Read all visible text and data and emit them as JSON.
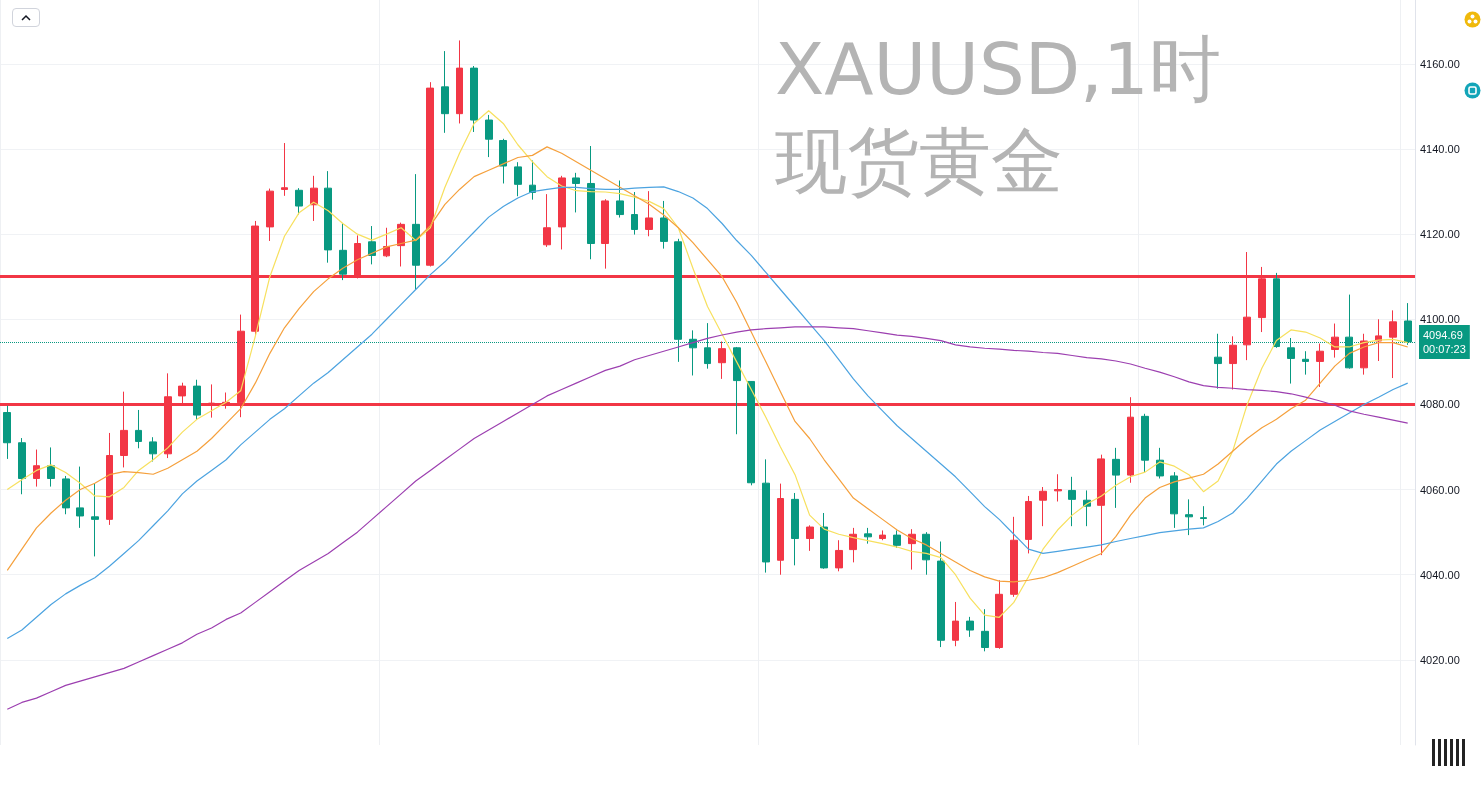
{
  "chart_data": {
    "type": "candlestick",
    "title": "XAUUSD,1时",
    "subtitle": "现货黄金",
    "categories": [
      null,
      null,
      null,
      null,
      null,
      null,
      null,
      null,
      null,
      null,
      null,
      null,
      null,
      null,
      null,
      null,
      null,
      null,
      null,
      null,
      null,
      null,
      null,
      null,
      null,
      null,
      null,
      null,
      null,
      null,
      null,
      null,
      null,
      null,
      null,
      null,
      null,
      null,
      null,
      null,
      null,
      null,
      null,
      null,
      null,
      null,
      null,
      null,
      null,
      null,
      null,
      null,
      null,
      null,
      null,
      null,
      null,
      null,
      null,
      null,
      null,
      null,
      null,
      null,
      null,
      null,
      null,
      null,
      null,
      null,
      null,
      null,
      null,
      null,
      null,
      null,
      null,
      null,
      null,
      null,
      null,
      null,
      null,
      null,
      null,
      null,
      null,
      null,
      null,
      null,
      null,
      null,
      null,
      null,
      null,
      null,
      null
    ],
    "ohlc": [
      [
        4078.1,
        4079.7,
        4067.2,
        4071.0
      ],
      [
        4071.0,
        4072.1,
        4058.9,
        4062.6
      ],
      [
        4062.6,
        4069.4,
        4060.7,
        4065.6
      ],
      [
        4065.6,
        4069.9,
        4060.7,
        4062.6
      ],
      [
        4062.5,
        4063.2,
        4054.2,
        4055.7
      ],
      [
        4055.7,
        4065.4,
        4051.0,
        4053.8
      ],
      [
        4053.6,
        4061.5,
        4044.3,
        4053.0
      ],
      [
        4053.0,
        4073.3,
        4051.7,
        4068.0
      ],
      [
        4068.0,
        4083.0,
        4065.2,
        4073.9
      ],
      [
        4073.9,
        4078.7,
        4069.7,
        4071.3
      ],
      [
        4071.2,
        4072.3,
        4066.6,
        4068.4
      ],
      [
        4068.4,
        4087.3,
        4067.4,
        4081.8
      ],
      [
        4082.0,
        4085.1,
        4079.8,
        4084.3
      ],
      [
        4084.3,
        4085.8,
        4076.4,
        4077.5
      ],
      [
        4080.0,
        4084.7,
        4076.9,
        4080.3
      ],
      [
        4080.2,
        4082.8,
        4079.0,
        4080.5
      ],
      [
        4080.4,
        4101.1,
        4077.0,
        4097.2
      ],
      [
        4097.2,
        4123.1,
        4096.3,
        4121.9
      ],
      [
        4121.7,
        4130.7,
        4118.4,
        4130.1
      ],
      [
        4130.5,
        4141.4,
        4129.0,
        4130.9
      ],
      [
        4130.3,
        4130.8,
        4124.6,
        4126.6
      ],
      [
        4126.9,
        4133.7,
        4123.1,
        4130.8
      ],
      [
        4130.8,
        4134.8,
        4113.3,
        4116.3
      ],
      [
        4116.2,
        4122.6,
        4109.2,
        4110.6
      ],
      [
        4109.9,
        4119.7,
        4109.6,
        4117.8
      ],
      [
        4118.2,
        4121.9,
        4112.9,
        4115.0
      ],
      [
        4114.9,
        4121.5,
        4114.6,
        4117.1
      ],
      [
        4117.3,
        4122.7,
        4112.4,
        4122.3
      ],
      [
        4122.3,
        4134.1,
        4107.0,
        4112.7
      ],
      [
        4112.7,
        4155.7,
        4112.4,
        4154.3
      ],
      [
        4154.6,
        4163.0,
        4143.8,
        4148.3
      ],
      [
        4148.3,
        4165.5,
        4146.0,
        4159.0
      ],
      [
        4159.0,
        4159.5,
        4144.0,
        4146.8
      ],
      [
        4146.8,
        4148.0,
        4138.1,
        4142.3
      ],
      [
        4142.0,
        4142.4,
        4131.9,
        4136.0
      ],
      [
        4135.8,
        4136.9,
        4128.9,
        4131.7
      ],
      [
        4131.5,
        4137.3,
        4128.1,
        4129.8
      ],
      [
        4117.5,
        4129.4,
        4117.0,
        4121.5
      ],
      [
        4121.7,
        4133.7,
        4116.4,
        4133.2
      ],
      [
        4133.2,
        4134.4,
        4125.1,
        4131.9
      ],
      [
        4131.9,
        4140.7,
        4114.1,
        4117.8
      ],
      [
        4117.8,
        4128.2,
        4111.9,
        4127.8
      ],
      [
        4127.8,
        4132.6,
        4123.9,
        4124.6
      ],
      [
        4124.6,
        4129.9,
        4119.9,
        4121.1
      ],
      [
        4121.1,
        4130.1,
        4119.5,
        4123.8
      ],
      [
        4123.8,
        4127.8,
        4116.6,
        4118.3
      ],
      [
        4118.2,
        4118.9,
        4090.0,
        4095.3
      ],
      [
        4095.3,
        4097.4,
        4086.8,
        4093.3
      ],
      [
        4093.3,
        4099.1,
        4088.4,
        4089.6
      ],
      [
        4089.8,
        4094.8,
        4086.0,
        4093.1
      ],
      [
        4093.3,
        4093.5,
        4073.0,
        4085.6
      ],
      [
        4085.4,
        4085.5,
        4061.0,
        4061.6
      ],
      [
        4061.5,
        4067.1,
        4040.5,
        4043.0
      ],
      [
        4043.4,
        4061.4,
        4040.0,
        4057.9
      ],
      [
        4057.7,
        4059.2,
        4042.2,
        4048.5
      ],
      [
        4048.5,
        4051.6,
        4045.6,
        4051.2
      ],
      [
        4051.2,
        4054.5,
        4041.4,
        4041.6
      ],
      [
        4041.6,
        4048.1,
        4040.8,
        4045.7
      ],
      [
        4045.9,
        4051.0,
        4042.9,
        4049.5
      ],
      [
        4049.6,
        4051.0,
        4047.3,
        4048.9
      ],
      [
        4048.5,
        4050.4,
        4048.1,
        4049.3
      ],
      [
        4049.3,
        4050.4,
        4046.3,
        4046.9
      ],
      [
        4047.3,
        4050.7,
        4041.2,
        4049.5
      ],
      [
        4049.5,
        4050.0,
        4040.0,
        4043.5
      ],
      [
        4043.2,
        4047.8,
        4023.0,
        4024.6
      ],
      [
        4024.6,
        4033.6,
        4023.2,
        4029.1
      ],
      [
        4029.1,
        4030.1,
        4025.4,
        4027.0
      ],
      [
        4026.7,
        4031.9,
        4022.0,
        4022.9
      ],
      [
        4022.9,
        4038.7,
        4022.6,
        4035.4
      ],
      [
        4035.4,
        4053.6,
        4034.8,
        4048.1
      ],
      [
        4048.3,
        4058.5,
        4045.0,
        4057.2
      ],
      [
        4057.5,
        4060.6,
        4051.4,
        4059.6
      ],
      [
        4059.7,
        4063.6,
        4057.2,
        4060.0
      ],
      [
        4059.8,
        4063.0,
        4051.4,
        4057.7
      ],
      [
        4057.5,
        4059.8,
        4051.4,
        4056.1
      ],
      [
        4056.3,
        4068.2,
        4044.6,
        4067.2
      ],
      [
        4067.1,
        4069.8,
        4055.7,
        4063.4
      ],
      [
        4063.4,
        4081.7,
        4061.6,
        4077.0
      ],
      [
        4077.2,
        4077.8,
        4064.1,
        4066.9
      ],
      [
        4066.9,
        4069.8,
        4062.6,
        4063.2
      ],
      [
        4063.2,
        4064.1,
        4051.0,
        4054.3
      ],
      [
        4054.1,
        4057.7,
        4049.3,
        4053.6
      ],
      [
        4053.4,
        4056.1,
        4051.6,
        4053.2
      ],
      [
        4091.1,
        4096.6,
        4083.7,
        4089.6
      ],
      [
        4089.6,
        4096.0,
        4083.5,
        4093.9
      ],
      [
        4094.0,
        4115.8,
        4090.4,
        4100.5
      ],
      [
        4100.4,
        4112.3,
        4097.0,
        4109.5
      ],
      [
        4109.5,
        4110.9,
        4093.3,
        4093.6
      ],
      [
        4093.3,
        4095.6,
        4084.9,
        4090.8
      ],
      [
        4090.6,
        4092.5,
        4087.0,
        4090.1
      ],
      [
        4090.1,
        4094.3,
        4084.1,
        4092.5
      ],
      [
        4092.9,
        4099.0,
        4091.0,
        4095.8
      ],
      [
        4095.8,
        4105.8,
        4088.4,
        4088.6
      ],
      [
        4088.6,
        4096.6,
        4087.0,
        4094.9
      ],
      [
        4094.9,
        4100.0,
        4090.2,
        4096.1
      ],
      [
        4095.8,
        4102.1,
        4086.2,
        4099.4
      ],
      [
        4099.6,
        4103.8,
        4094.0,
        4094.69
      ]
    ],
    "colors": [
      "#089981",
      "#089981",
      "#f23645",
      "#089981",
      "#089981",
      "#089981",
      "#089981",
      "#f23645",
      "#f23645",
      "#089981",
      "#089981",
      "#f23645",
      "#f23645",
      "#089981",
      "#f23645",
      "#f23645",
      "#f23645",
      "#f23645",
      "#f23645",
      "#f23645",
      "#089981",
      "#f23645",
      "#089981",
      "#089981",
      "#f23645",
      "#089981",
      "#f23645",
      "#f23645",
      "#089981",
      "#f23645",
      "#089981",
      "#f23645",
      "#089981",
      "#089981",
      "#089981",
      "#089981",
      "#089981",
      "#f23645",
      "#f23645",
      "#089981",
      "#089981",
      "#f23645",
      "#089981",
      "#089981",
      "#f23645",
      "#089981",
      "#089981",
      "#089981",
      "#089981",
      "#f23645",
      "#089981",
      "#089981",
      "#089981",
      "#f23645",
      "#089981",
      "#f23645",
      "#089981",
      "#f23645",
      "#f23645",
      "#089981",
      "#f23645",
      "#089981",
      "#f23645",
      "#089981",
      "#089981",
      "#f23645",
      "#089981",
      "#089981",
      "#f23645",
      "#f23645",
      "#f23645",
      "#f23645",
      "#f23645",
      "#089981",
      "#089981",
      "#f23645",
      "#089981",
      "#f23645",
      "#089981",
      "#089981",
      "#089981",
      "#089981",
      "#089981",
      "#089981",
      "#f23645",
      "#f23645",
      "#f23645",
      "#089981",
      "#089981",
      "#089981",
      "#f23645",
      "#f23645",
      "#089981",
      "#f23645",
      "#f23645",
      "#f23645",
      "#089981"
    ],
    "series": [
      {
        "type": "line",
        "color": "#f7e05e",
        "values": [
          4060,
          4062.3,
          4064.5,
          4065.8,
          4064,
          4061.5,
          4058.5,
          4058.3,
          4060.5,
          4064.5,
          4067,
          4069.8,
          4073.5,
          4076.5,
          4078.5,
          4080.5,
          4083.2,
          4096,
          4110,
          4119.5,
          4125,
          4127.5,
          4125.5,
          4122.5,
          4120,
          4118.6,
          4120,
          4121.5,
          4118.5,
          4121.5,
          4131,
          4139,
          4146,
          4149,
          4146,
          4141,
          4137,
          4133.5,
          4131.3,
          4130.2,
          4130,
          4129.9,
          4129.5,
          4128.7,
          4127.7,
          4126,
          4121.5,
          4112,
          4103,
          4096.5,
          4090,
          4083.5,
          4077,
          4070,
          4063.5,
          4054,
          4050.7,
          4049.5,
          4048.7,
          4048,
          4047.3,
          4046.5,
          4045.5,
          4045,
          4044,
          4040,
          4034.5,
          4030.5,
          4030,
          4033.5,
          4039.5,
          4046,
          4050.5,
          4054,
          4056.6,
          4058.5,
          4061,
          4063,
          4064.1,
          4066.5,
          4065.5,
          4063.5,
          4059.5,
          4062,
          4069,
          4080,
          4088.5,
          4095,
          4097.5,
          4097,
          4095.6,
          4093.5,
          4093.5,
          4094.5,
          4095.1,
          4095.3,
          4094.5
        ]
      },
      {
        "type": "line",
        "color": "#f5a03c",
        "values": [
          4041,
          4046,
          4051,
          4054.5,
          4057.5,
          4060,
          4061.5,
          4063.5,
          4064.2,
          4064,
          4063.6,
          4065,
          4067,
          4069,
          4072,
          4075.5,
          4079,
          4085,
          4092,
          4098,
          4102.5,
          4106.5,
          4109.5,
          4112,
          4114,
          4115.5,
          4117,
          4117.8,
          4118.6,
          4122,
          4127,
          4130.5,
          4133.5,
          4135,
          4136.5,
          4138,
          4138.5,
          4140.5,
          4139,
          4137,
          4135,
          4133,
          4131,
          4129,
          4127,
          4124.5,
          4121.5,
          4118,
          4114,
          4110,
          4104,
          4097,
          4090,
          4083,
          4076,
          4072,
          4067,
          4062.5,
          4058,
          4055.5,
          4053,
          4050.5,
          4048.5,
          4047,
          4045,
          4043,
          4041,
          4039.5,
          4038.5,
          4038.3,
          4038.7,
          4039.3,
          4040.5,
          4042,
          4043.5,
          4045,
          4049,
          4054,
          4058,
          4060.5,
          4061.8,
          4062.7,
          4063.6,
          4066,
          4069,
          4072,
          4074.5,
          4076.5,
          4079,
          4081,
          4085,
          4089,
          4092,
          4093.5,
          4094.5,
          4094.5,
          4093.5
        ]
      },
      {
        "type": "line",
        "color": "#4ca3e0",
        "values": [
          4025,
          4027,
          4030,
          4033,
          4035.5,
          4037.5,
          4039.3,
          4042,
          4045,
          4048,
          4051.5,
          4055,
          4059,
          4062,
          4064.5,
          4067,
          4070.5,
          4073.5,
          4076.5,
          4079,
          4082,
          4085,
          4087.5,
          4090.5,
          4093.5,
          4096.5,
          4100,
          4103.5,
          4107,
          4110.5,
          4113.5,
          4117,
          4120.5,
          4124,
          4126.5,
          4128.5,
          4130,
          4130.5,
          4131,
          4131,
          4130.7,
          4130.5,
          4130.5,
          4130.8,
          4131,
          4131.1,
          4130,
          4128.5,
          4126,
          4122.5,
          4118.5,
          4115,
          4111,
          4107,
          4103,
          4099,
          4095,
          4090.5,
          4086,
          4082,
          4078.5,
          4075,
          4072,
          4069,
          4066,
          4063,
          4059.5,
          4056,
          4053,
          4049.5,
          4046,
          4045,
          4045.5,
          4046,
          4046.5,
          4047,
          4047.8,
          4048.5,
          4049.2,
          4049.9,
          4050.3,
          4050.7,
          4051,
          4052.5,
          4054.5,
          4058,
          4062,
          4066,
          4069,
          4071.5,
          4074,
          4076,
          4078,
          4080,
          4081.7,
          4083.5,
          4085
        ]
      },
      {
        "type": "line",
        "color": "#9c3fb0",
        "values": [
          4008.4,
          4010,
          4011,
          4012.5,
          4014,
          4015,
          4016,
          4017,
          4018,
          4019.5,
          4021,
          4022.5,
          4024,
          4026,
          4027.5,
          4029.5,
          4031,
          4033.5,
          4036,
          4038.5,
          4041,
          4043,
          4045,
          4047.5,
          4050,
          4053,
          4056,
          4059,
          4062,
          4064.5,
          4067,
          4069.5,
          4072,
          4074,
          4076,
          4078,
          4080,
          4082,
          4083.5,
          4085,
          4086.5,
          4088,
          4089,
          4090.5,
          4091.5,
          4092.5,
          4093.5,
          4094.5,
          4095.5,
          4096.3,
          4097,
          4097.5,
          4097.8,
          4098,
          4098.2,
          4098.2,
          4098.2,
          4098,
          4097.8,
          4097.3,
          4096.8,
          4096.3,
          4096,
          4095.5,
          4095,
          4094,
          4093.5,
          4093.2,
          4093,
          4092.7,
          4092.5,
          4092.2,
          4092,
          4091.5,
          4091,
          4090.7,
          4090.2,
          4089.5,
          4088.5,
          4087.6,
          4086.5,
          4085.3,
          4084.4,
          4084,
          4083.8,
          4083.5,
          4083.3,
          4083,
          4082.5,
          4081.7,
          4080.8,
          4079.8,
          4078.5,
          4077.7,
          4077,
          4076.3,
          4075.6
        ]
      }
    ],
    "ylim": [
      4000,
      4175
    ],
    "yticks": [
      {
        "value": 4020,
        "label": "4020.00"
      },
      {
        "value": 4040,
        "label": "4040.00"
      },
      {
        "value": 4060,
        "label": "4060.00"
      },
      {
        "value": 4080,
        "label": "4080.00"
      },
      {
        "value": 4100,
        "label": "4100.00"
      },
      {
        "value": 4120,
        "label": "4120.00"
      },
      {
        "value": 4140,
        "label": "4140.00"
      },
      {
        "value": 4160,
        "label": "4160.00"
      }
    ],
    "grid": true,
    "ref_lines": [
      {
        "axis": "y",
        "value": 4110,
        "color": "#f23645",
        "line_style": "solid"
      },
      {
        "axis": "y",
        "value": 4080,
        "color": "#f23645",
        "line_style": "solid"
      },
      {
        "axis": "y",
        "value": 4094.69,
        "label": "4094.69",
        "color": "#089981",
        "line_style": "dotted"
      }
    ],
    "annotations": [
      "00:07:23"
    ]
  }
}
